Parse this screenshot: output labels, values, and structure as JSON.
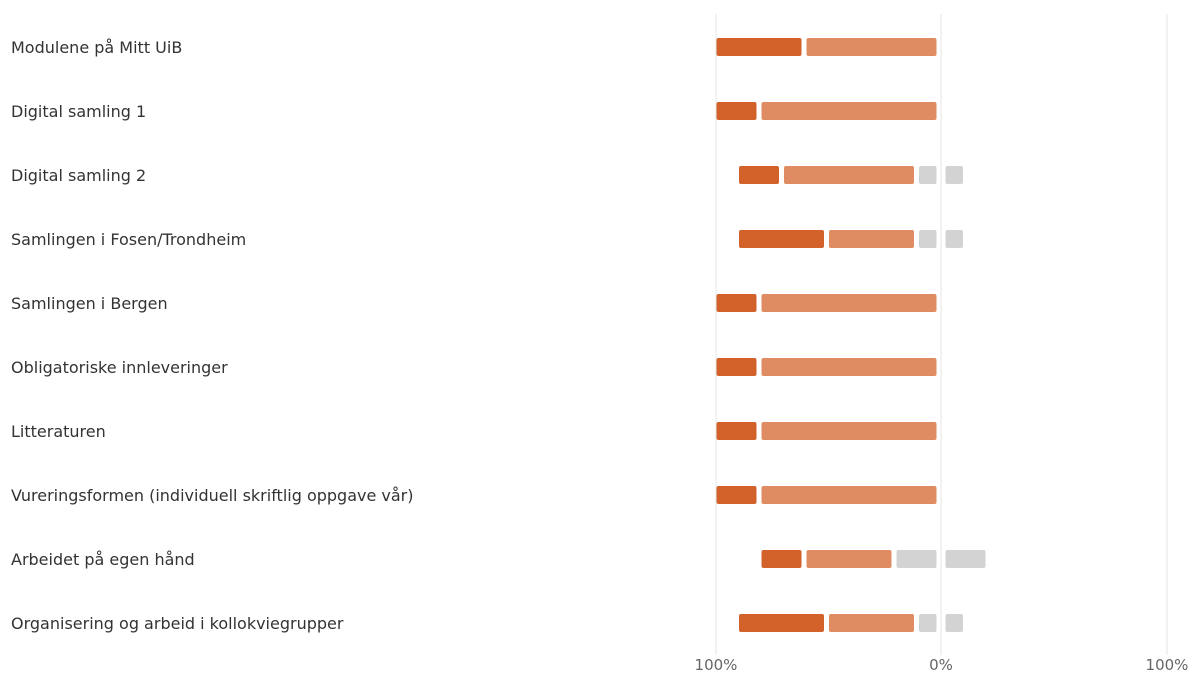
{
  "chart_data": {
    "type": "bar",
    "orientation": "horizontal",
    "stacked": true,
    "diverging": true,
    "categories": [
      "Modulene på Mitt UiB",
      "Digital samling 1",
      "Digital samling 2",
      "Samlingen i Fosen/Trondheim",
      "Samlingen i Bergen",
      "Obligatoriske innleveringer",
      "Litteraturen",
      "Vureringsformen (individuell skriftlig oppgave vår)",
      "Arbeidet på egen hånd",
      "Organisering og arbeid i kollokviegrupper"
    ],
    "series": [
      {
        "side": "negative",
        "color": "#d2622a",
        "values": [
          40,
          20,
          20,
          40,
          20,
          20,
          20,
          20,
          20,
          40
        ]
      },
      {
        "side": "negative",
        "color": "#e08c62",
        "values": [
          60,
          80,
          60,
          40,
          80,
          80,
          80,
          80,
          40,
          40
        ]
      },
      {
        "side": "negative",
        "color": "#d3d3d3",
        "values": [
          0,
          0,
          10,
          10,
          0,
          0,
          0,
          0,
          20,
          10
        ]
      },
      {
        "side": "positive",
        "color": "#d3d3d3",
        "values": [
          0,
          0,
          10,
          10,
          0,
          0,
          0,
          0,
          20,
          10
        ]
      }
    ],
    "x_ticks": [
      "100%",
      "0%",
      "100%"
    ],
    "xlim": [
      -100,
      100
    ],
    "grid": true,
    "legend": "none"
  }
}
